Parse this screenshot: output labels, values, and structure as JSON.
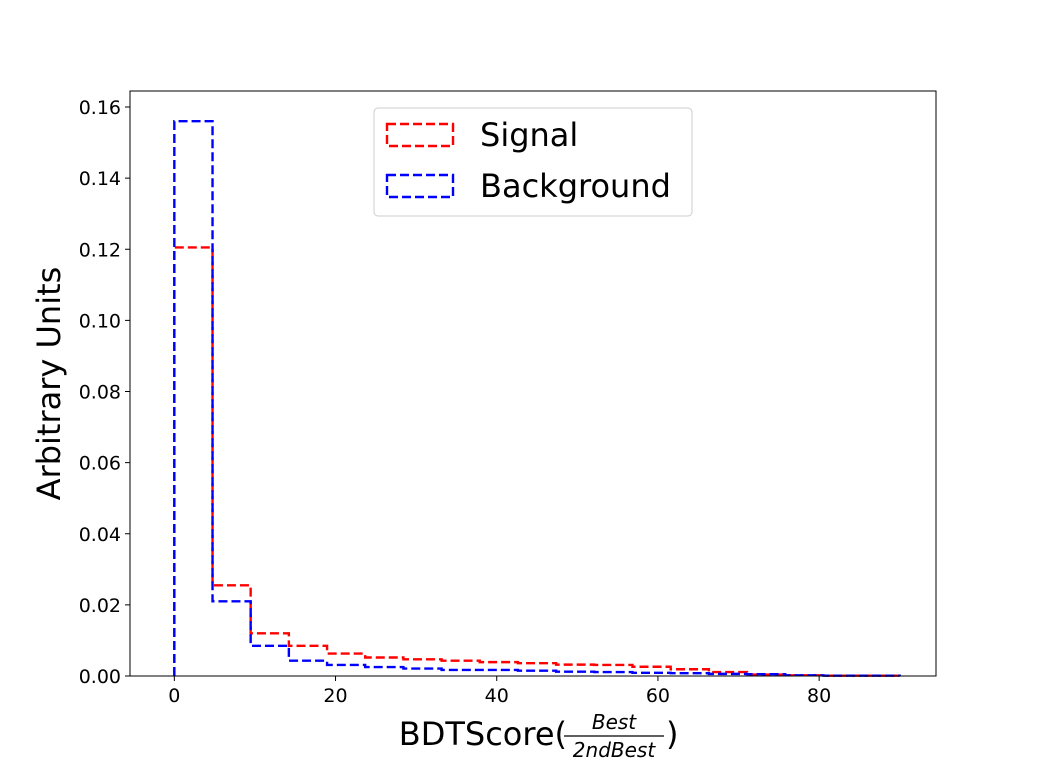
{
  "chart_data": {
    "type": "histogram-step",
    "xlabel": {
      "prefix": "BDTScore(",
      "numerator": "Best",
      "denominator": "2ndBest",
      "suffix": ")"
    },
    "ylabel": "Arbitrary Units",
    "xlim": [
      -5.5,
      94.5
    ],
    "ylim": [
      0,
      0.1645
    ],
    "xticks": [
      0,
      20,
      40,
      60,
      80
    ],
    "yticks": [
      0.0,
      0.02,
      0.04,
      0.06,
      0.08,
      0.1,
      0.12,
      0.14,
      0.16
    ],
    "ytick_labels": [
      "0.00",
      "0.02",
      "0.04",
      "0.06",
      "0.08",
      "0.10",
      "0.12",
      "0.14",
      "0.16"
    ],
    "bin_edges": [
      0,
      4.74,
      9.47,
      14.21,
      18.95,
      23.68,
      28.42,
      33.16,
      37.89,
      42.63,
      47.37,
      52.11,
      56.84,
      61.58,
      66.32,
      71.05,
      75.79,
      80.53,
      85.26,
      90
    ],
    "series": [
      {
        "name": "Signal",
        "color": "#ff0000",
        "values": [
          0.1205,
          0.0255,
          0.012,
          0.0085,
          0.0063,
          0.0052,
          0.0047,
          0.0043,
          0.0039,
          0.0036,
          0.0032,
          0.0031,
          0.0026,
          0.0019,
          0.0011,
          0.0004,
          0.0002,
          0.0001,
          0.0001
        ]
      },
      {
        "name": "Background",
        "color": "#0000ff",
        "values": [
          0.156,
          0.021,
          0.0085,
          0.0043,
          0.0031,
          0.0025,
          0.0021,
          0.0017,
          0.0017,
          0.0015,
          0.0012,
          0.0011,
          0.0009,
          0.0008,
          0.0006,
          0.0005,
          0.0002,
          0.0001,
          0.0001
        ]
      }
    ],
    "legend": {
      "position": "upper center",
      "entries": [
        "Signal",
        "Background"
      ]
    },
    "grid": false
  }
}
